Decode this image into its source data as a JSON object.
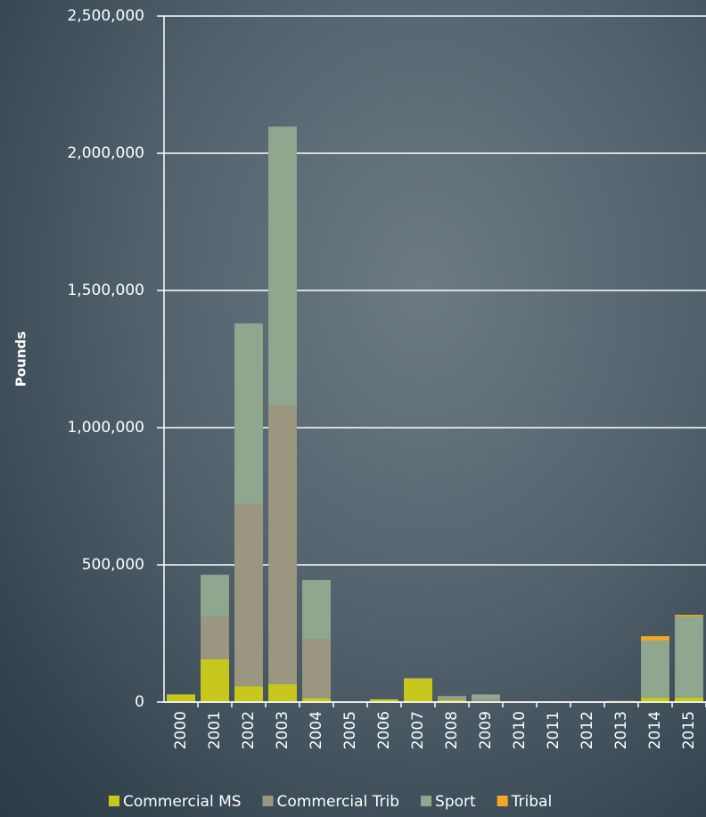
{
  "chart_data": {
    "type": "stacked-bar",
    "y_label": "Pounds",
    "categories": [
      "2000",
      "2001",
      "2002",
      "2003",
      "2004",
      "2005",
      "2006",
      "2007",
      "2008",
      "2009",
      "2010",
      "2011",
      "2012",
      "2013",
      "2014",
      "2015"
    ],
    "series": [
      {
        "name": "Commercial MS",
        "color": "#c8c81c",
        "values": [
          28000,
          156000,
          58000,
          65000,
          13000,
          0,
          10000,
          85000,
          8000,
          0,
          0,
          0,
          0,
          0,
          17000,
          17000
        ]
      },
      {
        "name": "Commercial Trib",
        "color": "#9b9680",
        "values": [
          0,
          156000,
          663000,
          1016000,
          217000,
          0,
          0,
          3000,
          5000,
          10000,
          0,
          0,
          0,
          0,
          0,
          0
        ]
      },
      {
        "name": "Sport",
        "color": "#8ea78e",
        "values": [
          0,
          152000,
          659000,
          1016000,
          215000,
          0,
          0,
          0,
          9000,
          18000,
          0,
          0,
          0,
          0,
          207000,
          295000
        ]
      },
      {
        "name": "Tribal",
        "color": "#f5a623",
        "values": [
          0,
          0,
          0,
          0,
          0,
          0,
          0,
          0,
          0,
          0,
          0,
          0,
          0,
          4000,
          16000,
          6000
        ]
      }
    ],
    "ylim": [
      0,
      2500000
    ],
    "yticks": [
      0,
      {
        "value": 500000,
        "label": "500,000"
      },
      {
        "value": 1000000,
        "label": "1,000,000"
      },
      {
        "value": 1500000,
        "label": "1,500,000"
      },
      {
        "value": 2000000,
        "label": "2,000,000"
      },
      {
        "value": 2500000,
        "label": "2,500,000"
      }
    ],
    "grid": true
  }
}
